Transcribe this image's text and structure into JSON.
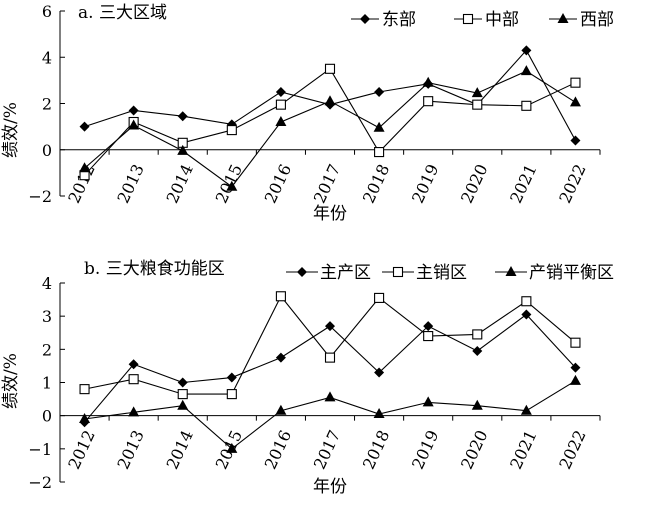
{
  "chart_data": [
    {
      "type": "line",
      "title": "a. 三大区域",
      "ylabel": "绩效/%",
      "xlabel": "年份",
      "categories": [
        "2012",
        "2013",
        "2014",
        "2015",
        "2016",
        "2017",
        "2018",
        "2019",
        "2020",
        "2021",
        "2022"
      ],
      "ylim": [
        -2,
        6
      ],
      "yticks": [
        -2,
        0,
        2,
        4,
        6
      ],
      "legend_position": "top-right",
      "series": [
        {
          "name": "东部",
          "marker": "diamond",
          "values": [
            1.0,
            1.7,
            1.45,
            1.1,
            2.5,
            1.95,
            2.5,
            2.85,
            1.95,
            4.3,
            0.4
          ]
        },
        {
          "name": "中部",
          "marker": "square-open",
          "values": [
            -1.1,
            1.2,
            0.3,
            0.85,
            1.95,
            3.5,
            -0.1,
            2.1,
            1.95,
            1.9,
            2.9
          ]
        },
        {
          "name": "西部",
          "marker": "triangle",
          "values": [
            -0.8,
            1.05,
            -0.05,
            -1.6,
            1.2,
            2.1,
            0.95,
            2.9,
            2.45,
            3.4,
            2.05
          ]
        }
      ]
    },
    {
      "type": "line",
      "title": "b. 三大粮食功能区",
      "ylabel": "绩效/%",
      "xlabel": "年份",
      "categories": [
        "2012",
        "2013",
        "2014",
        "2015",
        "2016",
        "2017",
        "2018",
        "2019",
        "2020",
        "2021",
        "2022"
      ],
      "ylim": [
        -2,
        4
      ],
      "yticks": [
        -2,
        -1,
        0,
        1,
        2,
        3,
        4
      ],
      "legend_position": "top-right",
      "series": [
        {
          "name": "主产区",
          "marker": "diamond",
          "values": [
            -0.2,
            1.55,
            1.0,
            1.15,
            1.75,
            2.7,
            1.3,
            2.7,
            1.95,
            3.05,
            1.45
          ]
        },
        {
          "name": "主销区",
          "marker": "square-open",
          "values": [
            0.8,
            1.1,
            0.65,
            0.65,
            3.6,
            1.75,
            3.55,
            2.4,
            2.45,
            3.45,
            2.2
          ]
        },
        {
          "name": "产销平衡区",
          "marker": "triangle",
          "values": [
            -0.1,
            0.1,
            0.3,
            -1.0,
            0.15,
            0.55,
            0.05,
            0.4,
            0.3,
            0.15,
            1.05
          ]
        }
      ]
    }
  ]
}
